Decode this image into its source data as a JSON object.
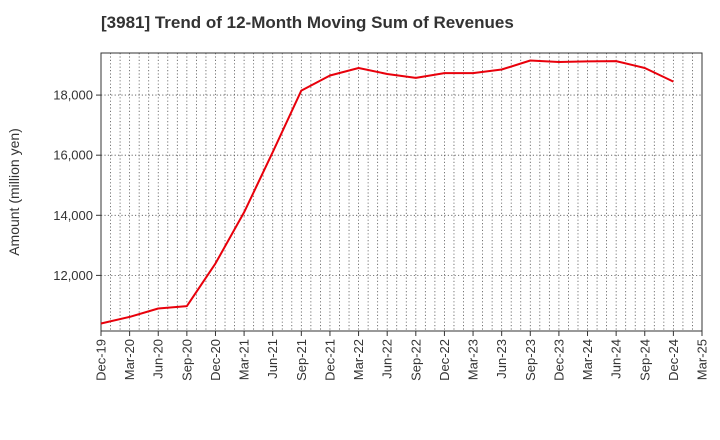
{
  "title": "[3981]  Trend of 12-Month Moving Sum of Revenues",
  "chart_data": {
    "type": "line",
    "title": "[3981]  Trend of 12-Month Moving Sum of Revenues",
    "xlabel": "",
    "ylabel": "Amount (million yen)",
    "x_tick_labels": [
      "Dec-19",
      "Mar-20",
      "Jun-20",
      "Sep-20",
      "Dec-20",
      "Mar-21",
      "Jun-21",
      "Sep-21",
      "Dec-21",
      "Mar-22",
      "Jun-22",
      "Sep-22",
      "Dec-22",
      "Mar-23",
      "Jun-23",
      "Sep-23",
      "Dec-23",
      "Mar-24",
      "Jun-24",
      "Sep-24",
      "Dec-24",
      "Mar-25"
    ],
    "y_ticks": [
      12000,
      14000,
      16000,
      18000
    ],
    "y_tick_labels": [
      "12,000",
      "14,000",
      "16,000",
      "18,000"
    ],
    "ylim": [
      10150,
      19400
    ],
    "grid": true,
    "series": [
      {
        "color": "#e8000b",
        "x": [
          "Dec-19",
          "Mar-20",
          "Jun-20",
          "Sep-20",
          "Dec-20",
          "Mar-21",
          "Jun-21",
          "Sep-21",
          "Dec-21",
          "Mar-22",
          "Jun-22",
          "Sep-22",
          "Dec-22",
          "Mar-23",
          "Jun-23",
          "Sep-23",
          "Dec-23",
          "Mar-24",
          "Jun-24",
          "Sep-24",
          "Dec-24"
        ],
        "values": [
          10400,
          10620,
          10900,
          10980,
          12400,
          14100,
          16100,
          18150,
          18650,
          18900,
          18700,
          18570,
          18730,
          18730,
          18850,
          19150,
          19100,
          19120,
          19130,
          18900,
          18450
        ]
      }
    ]
  }
}
